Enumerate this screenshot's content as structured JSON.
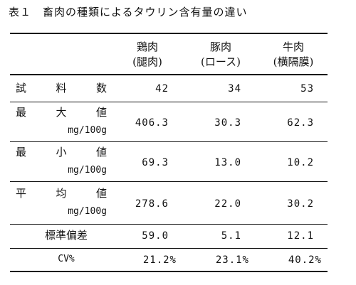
{
  "caption": "表１　畜肉の種類によるタウリン含有量の違い",
  "columns": [
    {
      "name": "鶏肉",
      "part": "(腿肉)"
    },
    {
      "name": "豚肉",
      "part": "(ロース)"
    },
    {
      "name": "牛肉",
      "part": "(横隔膜)"
    }
  ],
  "rows": [
    {
      "label_chars": [
        "試",
        "料",
        "数"
      ],
      "unit": "",
      "values": [
        "42",
        "34",
        "53"
      ]
    },
    {
      "label_chars": [
        "最",
        "大",
        "値"
      ],
      "unit": "mg/100g",
      "values": [
        "406.3",
        "30.3",
        "62.3"
      ]
    },
    {
      "label_chars": [
        "最",
        "小",
        "値"
      ],
      "unit": "mg/100g",
      "values": [
        "69.3",
        "13.0",
        "10.2"
      ]
    },
    {
      "label_chars": [
        "平",
        "均",
        "値"
      ],
      "unit": "mg/100g",
      "values": [
        "278.6",
        "22.0",
        "30.2"
      ]
    },
    {
      "label": "標準偏差",
      "values": [
        "59.0",
        "5.1",
        "12.1"
      ]
    },
    {
      "label": "CV%",
      "values": [
        "21.2%",
        "23.1%",
        "40.2%"
      ]
    }
  ]
}
